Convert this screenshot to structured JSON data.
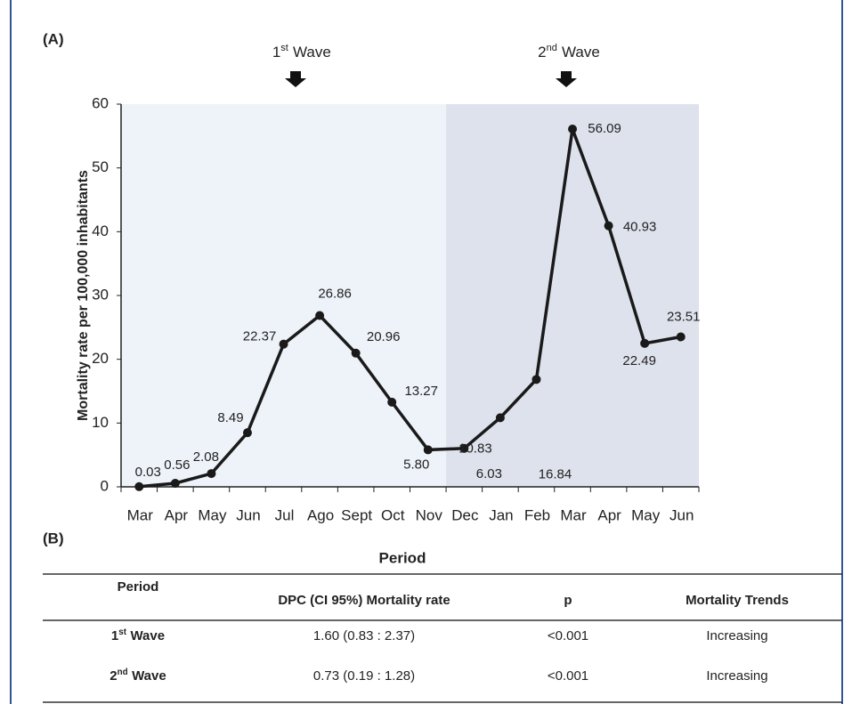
{
  "chart_data": {
    "type": "line",
    "panel_label": "(A)",
    "y_label": "Mortality rate per 100,000 inhabitants",
    "categories": [
      "Mar",
      "Apr",
      "May",
      "Jun",
      "Jul",
      "Ago",
      "Sept",
      "Oct",
      "Nov",
      "Dec",
      "Jan",
      "Feb",
      "Mar",
      "Apr",
      "May",
      "Jun"
    ],
    "values": [
      0.03,
      0.56,
      2.08,
      8.49,
      22.37,
      26.86,
      20.96,
      13.27,
      5.8,
      6.03,
      10.83,
      16.84,
      56.09,
      40.93,
      22.49,
      23.51
    ],
    "value_labels": [
      "0.03",
      "0.56",
      "2.08",
      "8.49",
      "22.37",
      "26.86",
      "20.96",
      "13.27",
      "5.80",
      "6.03",
      "10.83",
      "16.84",
      "56.09",
      "40.93",
      "22.49",
      "23.51"
    ],
    "color": "#1a1a1a",
    "ylim": [
      0,
      60
    ],
    "yticks": [
      0,
      10,
      20,
      30,
      40,
      50,
      60
    ],
    "annotations": [
      {
        "ordinal": "1",
        "superscript": "st",
        "label": "Wave"
      },
      {
        "ordinal": "2",
        "superscript": "nd",
        "label": "Wave"
      }
    ]
  },
  "table": {
    "panel_label": "(B)",
    "title": "Period",
    "header": [
      "Period",
      "DPC (CI 95%) Mortality rate",
      "p",
      "Mortality Trends"
    ],
    "rows": [
      [
        {
          "ordinal": "1",
          "superscript": "st",
          "label": "Wave"
        },
        "1.60 (0.83 : 2.37)",
        "<0.001",
        "Increasing"
      ],
      [
        {
          "ordinal": "2",
          "superscript": "nd",
          "label": "Wave"
        },
        "0.73 (0.19 : 1.28)",
        "<0.001",
        "Increasing"
      ]
    ]
  }
}
